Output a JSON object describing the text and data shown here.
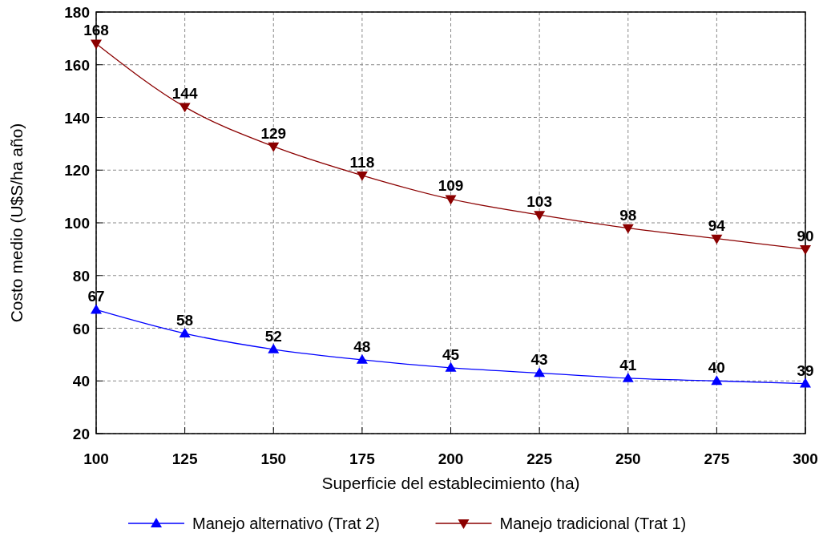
{
  "chart_data": {
    "type": "line",
    "xlabel": "Superficie del establecimiento (ha)",
    "ylabel": "Costo medio (U$S/ha año)",
    "x": [
      100,
      125,
      150,
      175,
      200,
      225,
      250,
      275,
      300
    ],
    "series": [
      {
        "name": "Manejo alternativo (Trat 2)",
        "color": "#0000ff",
        "marker": "triangle",
        "values": [
          67,
          58,
          52,
          48,
          45,
          43,
          41,
          40,
          39
        ]
      },
      {
        "name": "Manejo tradicional (Trat 1)",
        "color": "#8b0000",
        "marker": "triangle-down",
        "values": [
          168,
          144,
          129,
          118,
          109,
          103,
          98,
          94,
          90
        ]
      }
    ],
    "xlim": [
      100,
      300
    ],
    "xticks": [
      100,
      125,
      150,
      175,
      200,
      225,
      250,
      275,
      300
    ],
    "ylim": [
      20,
      180
    ],
    "yticks": [
      20,
      40,
      60,
      80,
      100,
      120,
      140,
      160,
      180
    ],
    "grid": true,
    "legend": "bottom",
    "data_labels": true,
    "line_style": "solid"
  }
}
